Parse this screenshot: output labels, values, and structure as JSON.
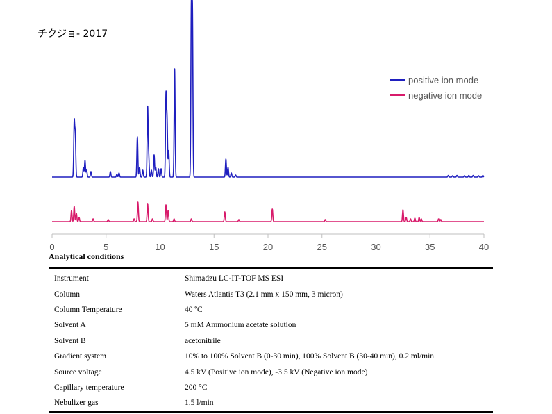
{
  "chart_data": {
    "type": "line",
    "title": "チクジョ- 2017",
    "xlabel": "",
    "ylabel": "",
    "xlim": [
      0,
      40
    ],
    "x_ticks": [
      0,
      5,
      10,
      15,
      20,
      25,
      30,
      35,
      40
    ],
    "grid": false,
    "legend_position": "right",
    "series": [
      {
        "name": "positive ion mode",
        "color": "#1f1fbf",
        "peaks": [
          [
            2.05,
            0.39
          ],
          [
            2.15,
            0.3
          ],
          [
            2.9,
            0.07
          ],
          [
            3.05,
            0.12
          ],
          [
            3.2,
            0.05
          ],
          [
            3.6,
            0.04
          ],
          [
            5.4,
            0.04
          ],
          [
            6.0,
            0.02
          ],
          [
            6.2,
            0.03
          ],
          [
            7.9,
            0.29
          ],
          [
            8.1,
            0.07
          ],
          [
            8.4,
            0.05
          ],
          [
            8.85,
            0.5
          ],
          [
            8.95,
            0.14
          ],
          [
            9.2,
            0.05
          ],
          [
            9.45,
            0.16
          ],
          [
            9.6,
            0.07
          ],
          [
            9.85,
            0.06
          ],
          [
            10.1,
            0.06
          ],
          [
            10.55,
            0.58
          ],
          [
            10.65,
            0.4
          ],
          [
            10.8,
            0.19
          ],
          [
            11.35,
            0.78
          ],
          [
            12.9,
            1.2
          ],
          [
            13.0,
            1.15
          ],
          [
            16.1,
            0.13
          ],
          [
            16.3,
            0.07
          ],
          [
            16.6,
            0.03
          ],
          [
            17.0,
            0.015
          ],
          [
            36.7,
            0.012
          ],
          [
            37.1,
            0.01
          ],
          [
            37.5,
            0.012
          ],
          [
            38.2,
            0.01
          ],
          [
            38.6,
            0.012
          ],
          [
            39.0,
            0.012
          ],
          [
            39.5,
            0.01
          ],
          [
            39.9,
            0.012
          ]
        ]
      },
      {
        "name": "negative ion mode",
        "color": "#d81b6b",
        "peaks": [
          [
            1.8,
            0.08
          ],
          [
            2.05,
            0.11
          ],
          [
            2.25,
            0.06
          ],
          [
            2.5,
            0.03
          ],
          [
            3.8,
            0.02
          ],
          [
            5.2,
            0.015
          ],
          [
            7.6,
            0.02
          ],
          [
            7.95,
            0.14
          ],
          [
            8.85,
            0.13
          ],
          [
            9.3,
            0.02
          ],
          [
            10.55,
            0.12
          ],
          [
            10.75,
            0.08
          ],
          [
            11.3,
            0.02
          ],
          [
            12.9,
            0.02
          ],
          [
            16.0,
            0.07
          ],
          [
            17.3,
            0.015
          ],
          [
            20.4,
            0.09
          ],
          [
            25.3,
            0.015
          ],
          [
            32.5,
            0.085
          ],
          [
            32.8,
            0.03
          ],
          [
            33.2,
            0.02
          ],
          [
            33.6,
            0.025
          ],
          [
            34.0,
            0.03
          ],
          [
            34.2,
            0.02
          ],
          [
            35.8,
            0.02
          ],
          [
            36.0,
            0.015
          ]
        ]
      }
    ]
  },
  "conditions": {
    "heading": "Analytical conditions",
    "rows": [
      {
        "param": "Instrument",
        "value": "Shimadzu LC-IT-TOF MS ESI"
      },
      {
        "param": "Column",
        "value": "Waters Atlantis T3 (2.1 mm x 150 mm, 3 micron)"
      },
      {
        "param": "Column Temperature",
        "value": "40 ºC"
      },
      {
        "param": "Solvent A",
        "value": "5 mM Ammonium acetate solution"
      },
      {
        "param": "Solvent B",
        "value": "acetonitrile"
      },
      {
        "param": "Gradient system",
        "value": "10% to 100% Solvent B (0-30 min), 100% Solvent B (30-40 min), 0.2 ml/min"
      },
      {
        "param": "Source voltage",
        "value": "4.5 kV (Positive ion mode), -3.5 kV (Negative ion mode)"
      },
      {
        "param": "Capillary temperature",
        "value": "200 °C"
      },
      {
        "param": "Nebulizer gas",
        "value": "1.5 l/min"
      }
    ]
  }
}
